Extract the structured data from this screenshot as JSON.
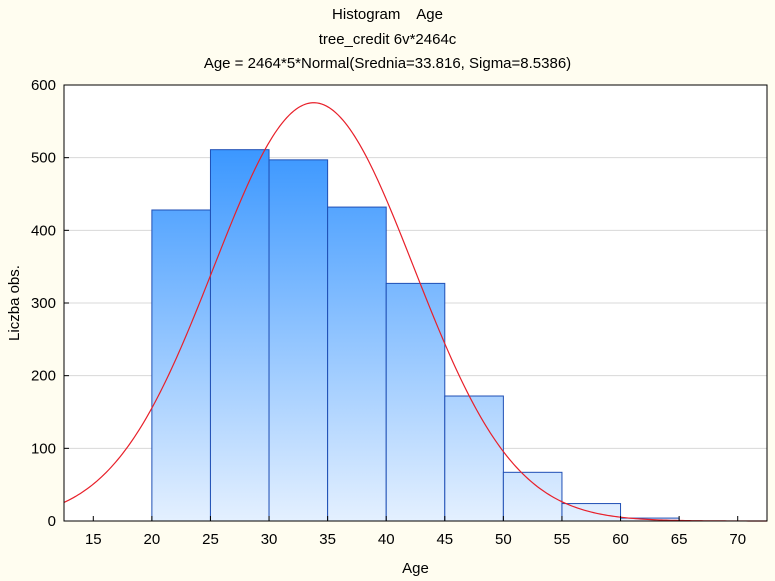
{
  "chart_data": {
    "type": "bar",
    "title": "Histogram    Age",
    "subtitle": "tree_credit 6v*2464c",
    "fit_label": "Age = 2464*5*Normal(Srednia=33.816, Sigma=8.5386)",
    "xlabel": "Age",
    "ylabel": "Liczba obs.",
    "xlim": [
      12.5,
      72.5
    ],
    "ylim": [
      0,
      600
    ],
    "x_ticks": [
      15,
      20,
      25,
      30,
      35,
      40,
      45,
      50,
      55,
      60,
      65,
      70
    ],
    "y_ticks": [
      0,
      100,
      200,
      300,
      400,
      500,
      600
    ],
    "bin_width": 5,
    "bins": [
      {
        "from": 20,
        "to": 25,
        "count": 428
      },
      {
        "from": 25,
        "to": 30,
        "count": 511
      },
      {
        "from": 30,
        "to": 35,
        "count": 497
      },
      {
        "from": 35,
        "to": 40,
        "count": 432
      },
      {
        "from": 40,
        "to": 45,
        "count": 327
      },
      {
        "from": 45,
        "to": 50,
        "count": 172
      },
      {
        "from": 50,
        "to": 55,
        "count": 67
      },
      {
        "from": 55,
        "to": 60,
        "count": 24
      },
      {
        "from": 60,
        "to": 65,
        "count": 4
      }
    ],
    "normal_fit": {
      "n": 2464,
      "width": 5,
      "mean": 33.816,
      "sigma": 8.5386
    },
    "grid": "horizontal",
    "colors": {
      "bar_top": "#1e88ff",
      "bar_bottom": "#e4f0ff",
      "bar_stroke": "#1f4fb5",
      "curve": "#e8202a",
      "plot_bg": "#ffffff",
      "page_bg": "#fffdf0",
      "grid": "#d8d8d8"
    }
  }
}
